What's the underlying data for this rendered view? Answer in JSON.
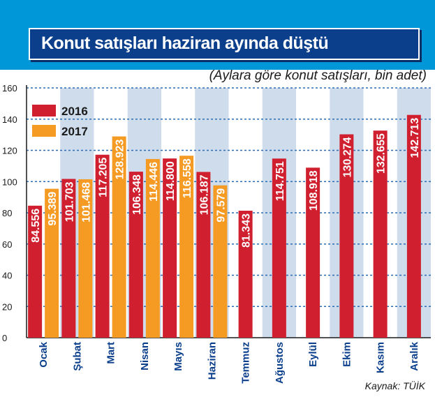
{
  "title": "Konut satışları haziran ayında düştü",
  "subtitle": "(Aylara göre konut satışları, bin adet)",
  "source": "Kaynak: TÜİK",
  "colors": {
    "series_2016": "#d0202f",
    "series_2017": "#f59a23",
    "header": "#0097d8",
    "title_box": "#0b3f8c",
    "stripe": "#cfdcec",
    "grid": "#2a6db5"
  },
  "chart_data": {
    "type": "bar",
    "title": "Konut satışları haziran ayında düştü",
    "subtitle": "(Aylara göre konut satışları, bin adet)",
    "categories": [
      "Ocak",
      "Şubat",
      "Mart",
      "Nisan",
      "Mayıs",
      "Haziran",
      "Temmuz",
      "Ağustos",
      "Eylül",
      "Ekim",
      "Kasım",
      "Aralık"
    ],
    "series": [
      {
        "name": "2016",
        "values": [
          84.556,
          101.703,
          117.205,
          106.348,
          114.8,
          106.187,
          81.343,
          114.751,
          108.918,
          130.274,
          132.655,
          142.713
        ],
        "labels": [
          "84.556",
          "101.703",
          "117.205",
          "106.348",
          "114.800",
          "106.187",
          "81.343",
          "114.751",
          "108.918",
          "130.274",
          "132.655",
          "142.713"
        ]
      },
      {
        "name": "2017",
        "values": [
          95.389,
          101.468,
          128.923,
          114.446,
          116.558,
          97.579,
          null,
          null,
          null,
          null,
          null,
          null
        ],
        "labels": [
          "95.389",
          "101.468",
          "128.923",
          "114.446",
          "116.558",
          "97.579",
          null,
          null,
          null,
          null,
          null,
          null
        ]
      }
    ],
    "ylim": [
      0,
      160
    ],
    "yticks": [
      "0",
      "20",
      "40",
      "60",
      "80",
      "100",
      "120",
      "140",
      "160"
    ],
    "grid": true,
    "legend": "top-left"
  }
}
